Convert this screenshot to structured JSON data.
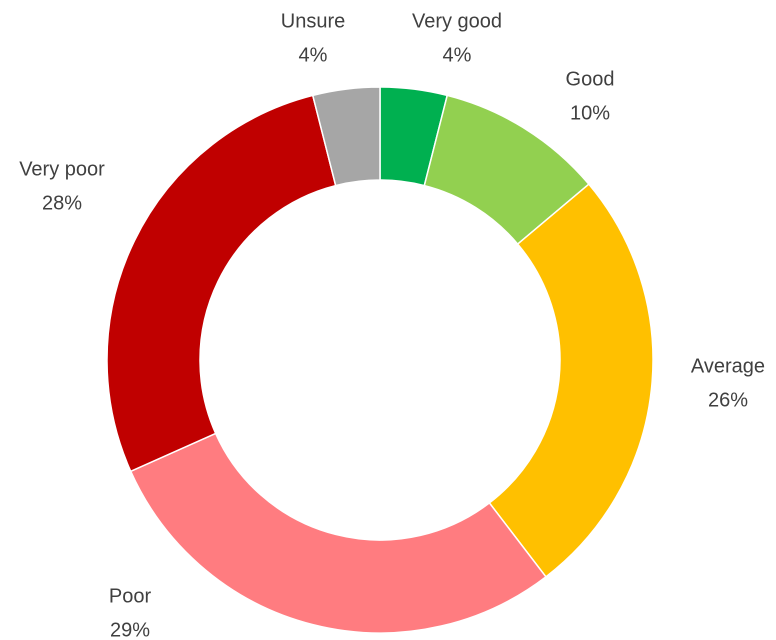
{
  "chart_data": {
    "type": "donut",
    "categories": [
      "Very good",
      "Good",
      "Average",
      "Poor",
      "Very poor",
      "Unsure"
    ],
    "values": [
      4,
      10,
      26,
      29,
      28,
      4
    ],
    "value_labels": [
      "4%",
      "10%",
      "26%",
      "29%",
      "28%",
      "4%"
    ],
    "colors": [
      "#00b050",
      "#92d050",
      "#ffc000",
      "#ff7c80",
      "#c00000",
      "#a6a6a6"
    ]
  }
}
